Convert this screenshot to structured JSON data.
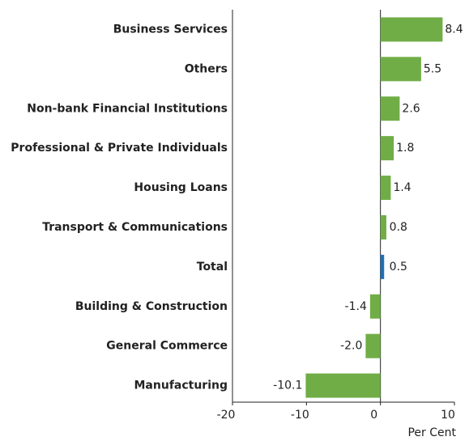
{
  "chart_data": {
    "type": "barh",
    "categories": [
      "Business Services",
      "Others",
      "Non-bank Financial Institutions",
      "Professional & Private Individuals",
      "Housing Loans",
      "Transport & Communications",
      "Total",
      "Building & Construction",
      "General Commerce",
      "Manufacturing"
    ],
    "values": [
      8.4,
      5.5,
      2.6,
      1.8,
      1.4,
      0.8,
      0.5,
      -1.4,
      -2.0,
      -10.1
    ],
    "value_labels": [
      "8.4",
      "5.5",
      "2.6",
      "1.8",
      "1.4",
      "0.8",
      "0.5",
      "-1.4",
      "-2.0",
      "-10.1"
    ],
    "colors": [
      "#70ad47",
      "#70ad47",
      "#70ad47",
      "#70ad47",
      "#70ad47",
      "#70ad47",
      "#1f6fb4",
      "#70ad47",
      "#70ad47",
      "#70ad47"
    ],
    "xlim": [
      -20,
      10
    ],
    "xticks": [
      -20,
      -10,
      0,
      10
    ],
    "x_label": "Per Cent"
  }
}
